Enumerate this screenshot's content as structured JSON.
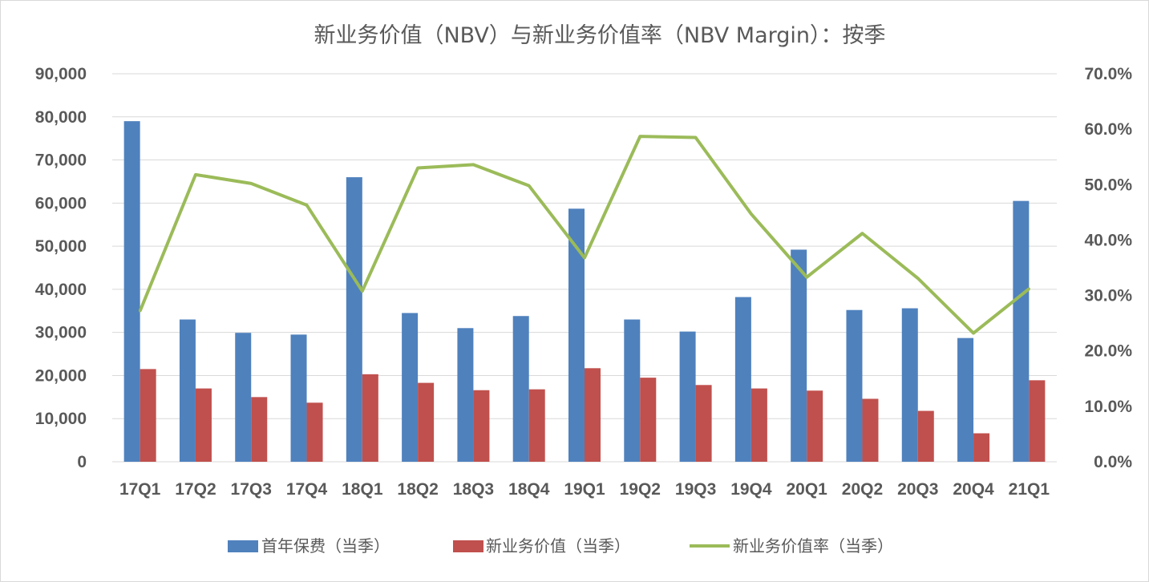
{
  "chart_data": {
    "type": "bar",
    "title": "新业务价值（NBV）与新业务价值率（NBV Margin）：按季",
    "categories": [
      "17Q1",
      "17Q2",
      "17Q3",
      "17Q4",
      "18Q1",
      "18Q2",
      "18Q3",
      "18Q4",
      "19Q1",
      "19Q2",
      "19Q3",
      "19Q4",
      "20Q1",
      "20Q2",
      "20Q3",
      "20Q4",
      "21Q1"
    ],
    "series": [
      {
        "name": "首年保费（当季）",
        "type": "bar",
        "axis": "left",
        "color": "#4f81bd",
        "values": [
          79000,
          33000,
          29900,
          29500,
          66000,
          34500,
          31000,
          33800,
          58700,
          33000,
          30200,
          38200,
          49200,
          35200,
          35600,
          28700,
          60500
        ]
      },
      {
        "name": "新业务价值（当季）",
        "type": "bar",
        "axis": "left",
        "color": "#c0504d",
        "values": [
          21500,
          17000,
          15000,
          13700,
          20300,
          18300,
          16600,
          16800,
          21700,
          19500,
          17800,
          17000,
          16500,
          14600,
          11800,
          6600,
          18900
        ]
      },
      {
        "name": "新业务价值率（当季）",
        "type": "line",
        "axis": "right",
        "color": "#9bbb59",
        "values": [
          27.2,
          51.8,
          50.2,
          46.3,
          30.8,
          53.0,
          53.6,
          49.8,
          36.8,
          58.7,
          58.5,
          44.7,
          33.3,
          41.2,
          33.1,
          23.2,
          31.2
        ]
      }
    ],
    "y_left": {
      "min": 0,
      "max": 90000,
      "step": 10000,
      "tick_labels": [
        "0",
        "10,000",
        "20,000",
        "30,000",
        "40,000",
        "50,000",
        "60,000",
        "70,000",
        "80,000",
        "90,000"
      ]
    },
    "y_right": {
      "min": 0,
      "max": 70,
      "step": 10,
      "unit": "%",
      "tick_labels": [
        "0.0%",
        "10.0%",
        "20.0%",
        "30.0%",
        "40.0%",
        "50.0%",
        "60.0%",
        "70.0%"
      ]
    },
    "grid": true,
    "legend": "bottom"
  }
}
